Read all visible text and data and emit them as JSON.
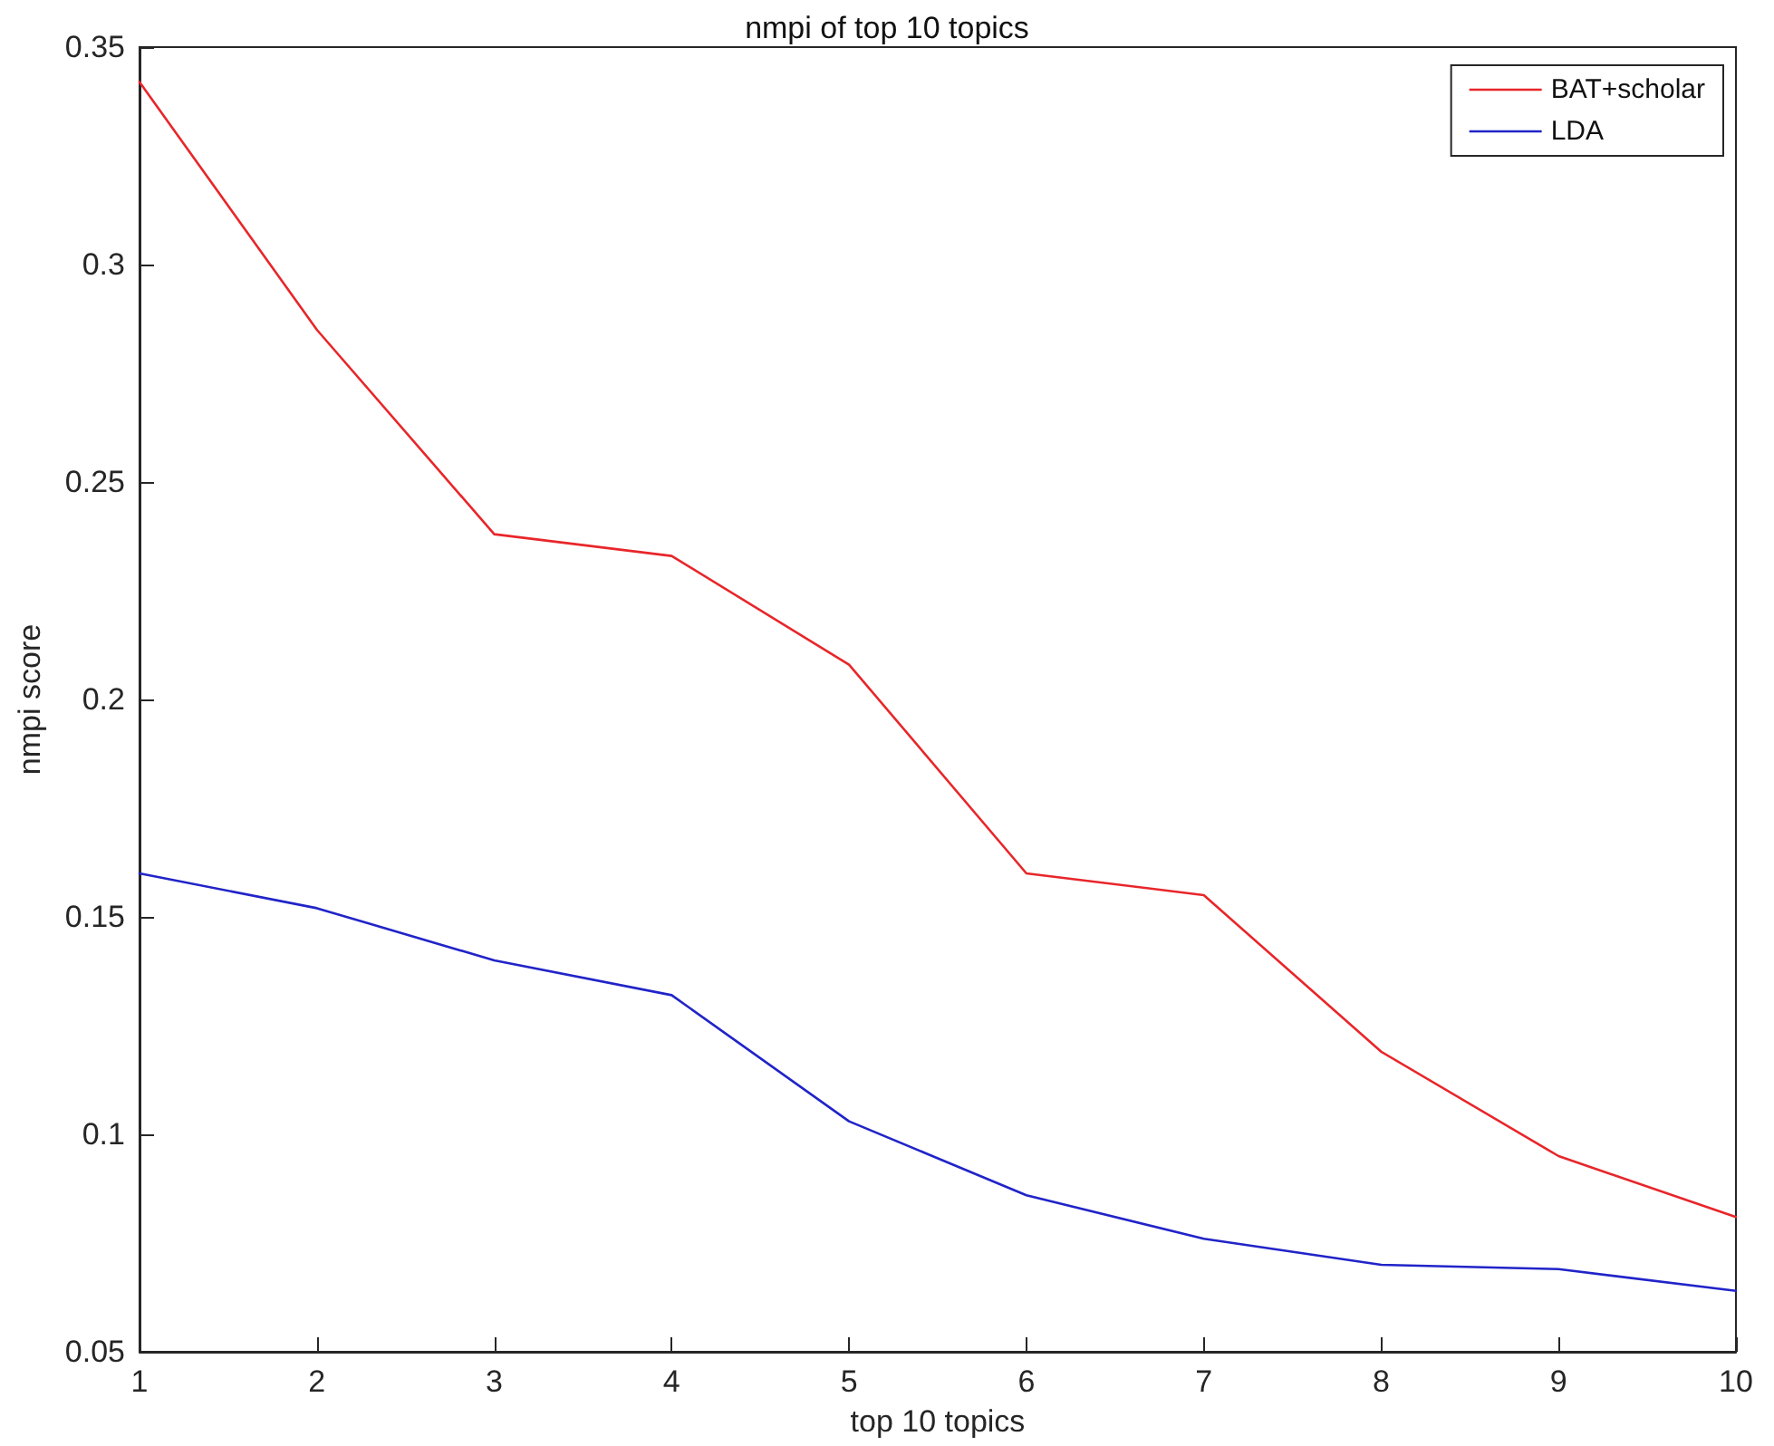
{
  "chart_data": {
    "type": "line",
    "title": "nmpi of top 10 topics",
    "xlabel": "top 10 topics",
    "ylabel": "nmpi score",
    "x": [
      1,
      2,
      3,
      4,
      5,
      6,
      7,
      8,
      9,
      10
    ],
    "series": [
      {
        "name": "BAT+scholar",
        "color": "#e8262a",
        "values": [
          0.342,
          0.285,
          0.238,
          0.233,
          0.208,
          0.16,
          0.155,
          0.119,
          0.095,
          0.081
        ]
      },
      {
        "name": "LDA",
        "color": "#2124c8",
        "values": [
          0.16,
          0.152,
          0.14,
          0.132,
          0.103,
          0.086,
          0.076,
          0.07,
          0.069,
          0.064
        ]
      }
    ],
    "xlim": [
      1,
      10
    ],
    "xticks": [
      1,
      2,
      3,
      4,
      5,
      6,
      7,
      8,
      9,
      10
    ],
    "ylim": [
      0.05,
      0.35
    ],
    "yticks": [
      0.05,
      0.1,
      0.15,
      0.2,
      0.25,
      0.3,
      0.35
    ],
    "grid": false,
    "legend": "top right",
    "marker": "none",
    "line_style": "solid"
  }
}
